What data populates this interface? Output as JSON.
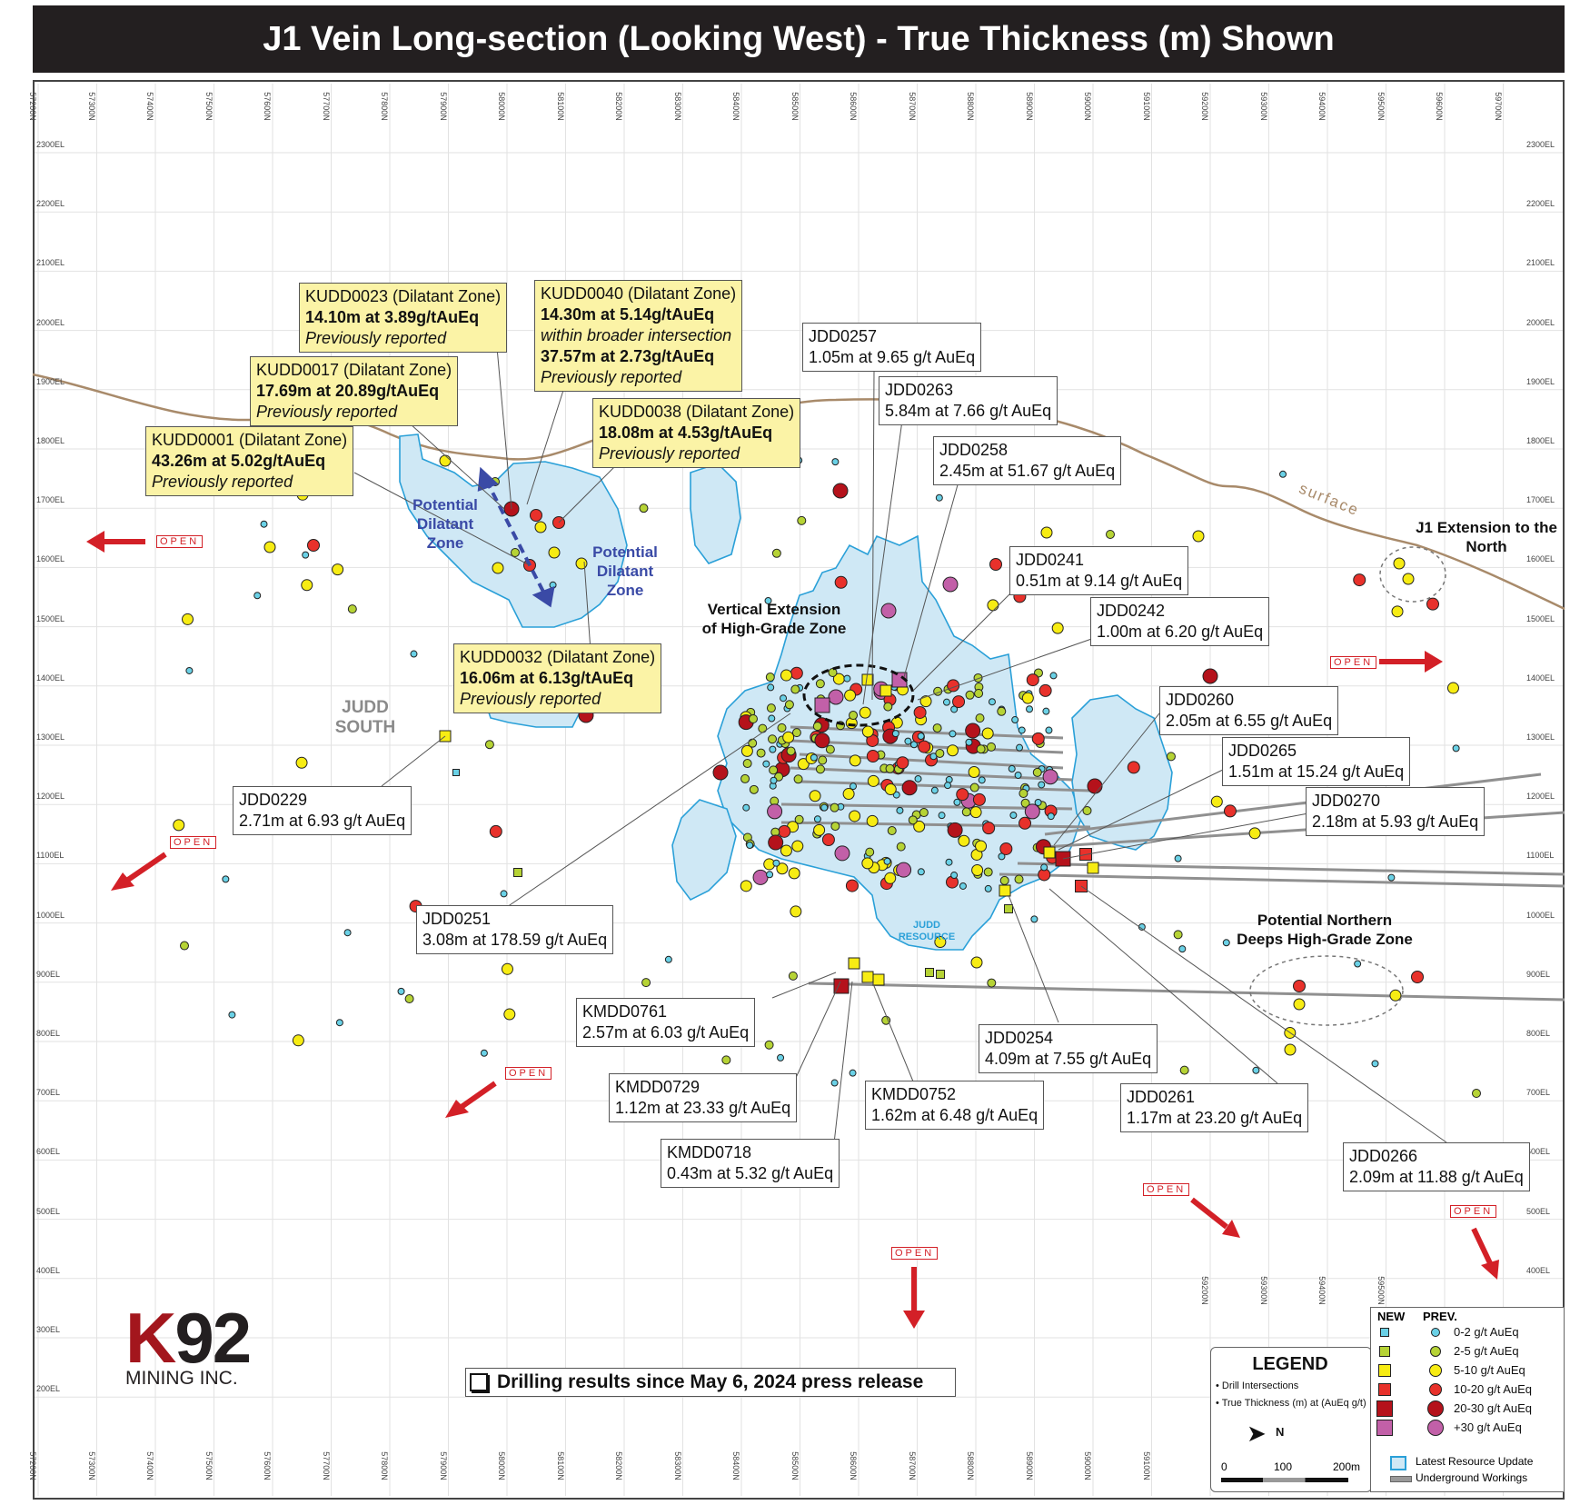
{
  "title": "J1 Vein Long-section (Looking West) - True Thickness (m) Shown",
  "colors": {
    "resource_fill": "#cfe8f5",
    "resource_outline": "#2aa0d8",
    "surface": "#a88a6a",
    "open_arrow": "#d32027",
    "cyan_dot": "#6ad1e6",
    "green_dot": "#b6d335",
    "yellow_dot": "#f7ec13",
    "red_dot": "#e8312b",
    "darkred_dot": "#b5121b",
    "purple_dot": "#c260a8",
    "callout_yellow": "#fbf3a6"
  },
  "northings": [
    "57200N",
    "57300N",
    "57400N",
    "57500N",
    "57600N",
    "57700N",
    "57800N",
    "57900N",
    "58000N",
    "58100N",
    "58200N",
    "58300N",
    "58400N",
    "58500N",
    "58600N",
    "58700N",
    "58800N",
    "58900N",
    "59000N",
    "59100N",
    "59200N",
    "59300N",
    "59400N",
    "59500N",
    "59600N",
    "59700N"
  ],
  "bottom_northings": [
    "57200N",
    "57300N",
    "57400N",
    "57500N",
    "57600N",
    "57700N",
    "57800N",
    "57900N",
    "58000N",
    "58100N",
    "58200N",
    "58300N",
    "58400N",
    "58500N",
    "58600N",
    "58700N",
    "58800N",
    "58900N",
    "59000N",
    "59100N"
  ],
  "mid_northings": [
    "59200N",
    "59300N",
    "59400N",
    "59500N"
  ],
  "elevations": [
    "2300EL",
    "2200EL",
    "2100EL",
    "2000EL",
    "1900EL",
    "1800EL",
    "1700EL",
    "1600EL",
    "1500EL",
    "1400EL",
    "1300EL",
    "1200EL",
    "1100EL",
    "1000EL",
    "900EL",
    "800EL",
    "700EL",
    "600EL",
    "500EL",
    "400EL",
    "300EL",
    "200EL"
  ],
  "right_elevations": [
    "2300EL",
    "2200EL",
    "2100EL",
    "2000EL",
    "1900EL",
    "1800EL",
    "1700EL",
    "1600EL",
    "1500EL",
    "1400EL",
    "1300EL",
    "1200EL",
    "1100EL",
    "1000EL",
    "900EL",
    "800EL",
    "700EL",
    "600EL",
    "500EL",
    "400EL"
  ],
  "callouts": {
    "kudd0023": {
      "l1": "KUDD0023 (Dilatant Zone)",
      "l2": "14.10m at 3.89g/tAuEq",
      "l3": "Previously reported"
    },
    "kudd0040": {
      "l1": "KUDD0040 (Dilatant Zone)",
      "l2": "14.30m at 5.14g/tAuEq",
      "l3": "within broader intersection",
      "l4": "37.57m at 2.73g/tAuEq",
      "l5": "Previously reported"
    },
    "kudd0017": {
      "l1": "KUDD0017 (Dilatant Zone)",
      "l2": "17.69m at 20.89g/tAuEq",
      "l3": "Previously reported"
    },
    "kudd0038": {
      "l1": "KUDD0038 (Dilatant Zone)",
      "l2": "18.08m at 4.53g/tAuEq",
      "l3": "Previously reported"
    },
    "kudd0001": {
      "l1": "KUDD0001 (Dilatant Zone)",
      "l2": "43.26m at 5.02g/tAuEq",
      "l3": "Previously reported"
    },
    "kudd0032": {
      "l1": "KUDD0032 (Dilatant Zone)",
      "l2": "16.06m at 6.13g/tAuEq",
      "l3": "Previously reported"
    },
    "jdd0257": {
      "l1": "JDD0257",
      "l2": "1.05m at 9.65 g/t AuEq"
    },
    "jdd0263": {
      "l1": "JDD0263",
      "l2": "5.84m at 7.66 g/t AuEq"
    },
    "jdd0258": {
      "l1": "JDD0258",
      "l2": "2.45m at 51.67 g/t AuEq"
    },
    "jdd0241": {
      "l1": "JDD0241",
      "l2": "0.51m at 9.14 g/t AuEq"
    },
    "jdd0242": {
      "l1": "JDD0242",
      "l2": "1.00m at 6.20 g/t AuEq"
    },
    "jdd0260": {
      "l1": "JDD0260",
      "l2": "2.05m at 6.55 g/t AuEq"
    },
    "jdd0265": {
      "l1": "JDD0265",
      "l2": "1.51m at 15.24 g/t AuEq"
    },
    "jdd0270": {
      "l1": "JDD0270",
      "l2": "2.18m at 5.93 g/t AuEq"
    },
    "jdd0229": {
      "l1": "JDD0229",
      "l2": "2.71m at 6.93 g/t AuEq"
    },
    "jdd0251": {
      "l1": "JDD0251",
      "l2": "3.08m at 178.59 g/t AuEq"
    },
    "kmdd0761": {
      "l1": "KMDD0761",
      "l2": "2.57m at 6.03 g/t AuEq"
    },
    "kmdd0729": {
      "l1": "KMDD0729",
      "l2": "1.12m at 23.33 g/t AuEq"
    },
    "kmdd0718": {
      "l1": "KMDD0718",
      "l2": "0.43m at 5.32 g/t AuEq"
    },
    "kmdd0752": {
      "l1": "KMDD0752",
      "l2": "1.62m at 6.48 g/t AuEq"
    },
    "jdd0254": {
      "l1": "JDD0254",
      "l2": "4.09m at 7.55 g/t AuEq"
    },
    "jdd0261": {
      "l1": "JDD0261",
      "l2": "1.17m at 23.20 g/t AuEq"
    },
    "jdd0266": {
      "l1": "JDD0266",
      "l2": "2.09m at 11.88 g/t AuEq"
    }
  },
  "labels": {
    "potential_dilatant_1": "Potential Dilatant Zone",
    "potential_dilatant_2": "Potential Dilatant Zone",
    "vertical_extension": "Vertical Extension of High-Grade Zone",
    "judd_south": "JUDD SOUTH",
    "judd_resource": "JUDD RESOURCE",
    "surface": "surface",
    "j1_extension": "J1 Extension to the North",
    "northern_deeps": "Potential Northern Deeps High-Grade Zone",
    "open": "OPEN",
    "drilling_results": "Drilling results since May 6, 2024 press release"
  },
  "logo": {
    "k92": "K92",
    "sub": "MINING INC."
  },
  "legend": {
    "title": "LEGEND",
    "note1": "• Drill Intersections",
    "note2": "• True Thickness (m) at (AuEq g/t)",
    "north": "N",
    "col_new": "NEW",
    "col_prev": "PREV.",
    "grades": [
      "0-2 g/t AuEq",
      "2-5 g/t AuEq",
      "5-10 g/t AuEq",
      "10-20 g/t AuEq",
      "20-30 g/t AuEq",
      "+30 g/t AuEq"
    ],
    "scale": [
      "0",
      "100",
      "200m"
    ],
    "resource": "Latest Resource Update",
    "workings": "Underground Workings"
  }
}
